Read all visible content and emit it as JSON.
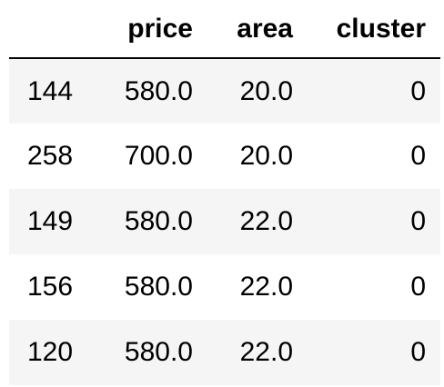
{
  "table": {
    "columns": [
      "price",
      "area",
      "cluster"
    ],
    "rows": [
      {
        "index": "144",
        "price": "580.0",
        "area": "20.0",
        "cluster": "0"
      },
      {
        "index": "258",
        "price": "700.0",
        "area": "20.0",
        "cluster": "0"
      },
      {
        "index": "149",
        "price": "580.0",
        "area": "22.0",
        "cluster": "0"
      },
      {
        "index": "156",
        "price": "580.0",
        "area": "22.0",
        "cluster": "0"
      },
      {
        "index": "120",
        "price": "580.0",
        "area": "22.0",
        "cluster": "0"
      }
    ]
  }
}
